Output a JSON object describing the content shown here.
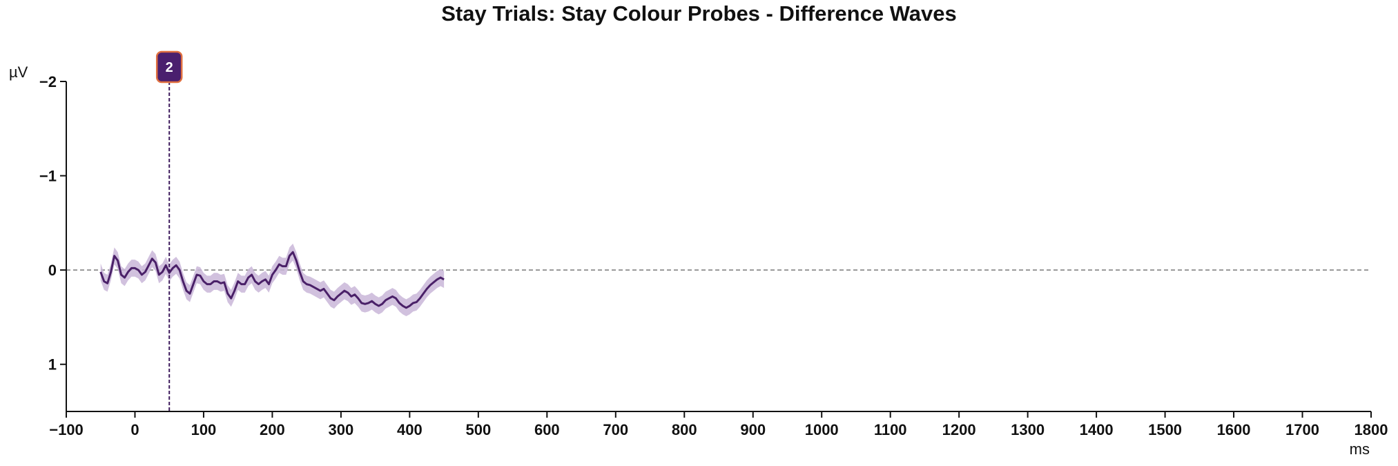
{
  "chart_data": {
    "type": "line",
    "title": "Stay Trials: Stay Colour Probes - Difference Waves",
    "xlabel": "ms",
    "ylabel": "µV",
    "xlim": [
      -100,
      1800
    ],
    "ylim": [
      1.5,
      -2
    ],
    "y_inverted": true,
    "x_ticks": [
      -100,
      0,
      100,
      200,
      300,
      400,
      500,
      600,
      700,
      800,
      900,
      1000,
      1100,
      1200,
      1300,
      1400,
      1500,
      1600,
      1700,
      1800
    ],
    "x_tick_labels": [
      "−100",
      "0",
      "100",
      "200",
      "300",
      "400",
      "500",
      "600",
      "700",
      "800",
      "900",
      "1000",
      "1100",
      "1200",
      "1300",
      "1400",
      "1500",
      "1600",
      "1700",
      "1800"
    ],
    "y_ticks": [
      -2,
      -1,
      0,
      1
    ],
    "y_tick_labels": [
      "−2",
      "−1",
      "0",
      "1"
    ],
    "zero_line": true,
    "series": [
      {
        "color": "#4a2068",
        "band_color": "#c9b6d8",
        "x": [
          -50,
          -45,
          -40,
          -35,
          -30,
          -25,
          -20,
          -15,
          -10,
          -5,
          0,
          5,
          10,
          15,
          20,
          25,
          30,
          35,
          40,
          45,
          50,
          55,
          60,
          65,
          70,
          75,
          80,
          85,
          90,
          95,
          100,
          105,
          110,
          115,
          120,
          125,
          130,
          135,
          140,
          145,
          150,
          155,
          160,
          165,
          170,
          175,
          180,
          185,
          190,
          195,
          200,
          205,
          210,
          215,
          220,
          225,
          230,
          235,
          240,
          245,
          250,
          255,
          260,
          265,
          270,
          275,
          280,
          285,
          290,
          295,
          300,
          305,
          310,
          315,
          320,
          325,
          330,
          335,
          340,
          345,
          350,
          355,
          360,
          365,
          370,
          375,
          380,
          385,
          390,
          395,
          400,
          405,
          410,
          415,
          420,
          425,
          430,
          435,
          440,
          445,
          450
        ],
        "y": [
          0.02,
          0.12,
          0.14,
          0.02,
          -0.15,
          -0.1,
          0.05,
          0.08,
          0.02,
          -0.02,
          -0.02,
          0.0,
          0.05,
          0.02,
          -0.05,
          -0.12,
          -0.08,
          0.05,
          0.02,
          -0.05,
          0.03,
          -0.02,
          -0.05,
          0.0,
          0.12,
          0.22,
          0.25,
          0.15,
          0.05,
          0.06,
          0.12,
          0.15,
          0.15,
          0.12,
          0.12,
          0.14,
          0.13,
          0.25,
          0.3,
          0.22,
          0.12,
          0.15,
          0.15,
          0.08,
          0.05,
          0.12,
          0.15,
          0.12,
          0.1,
          0.15,
          0.05,
          0.0,
          -0.06,
          -0.04,
          -0.04,
          -0.15,
          -0.19,
          -0.1,
          0.02,
          0.12,
          0.15,
          0.16,
          0.18,
          0.2,
          0.22,
          0.2,
          0.25,
          0.3,
          0.32,
          0.28,
          0.25,
          0.22,
          0.24,
          0.28,
          0.26,
          0.3,
          0.35,
          0.36,
          0.35,
          0.33,
          0.36,
          0.38,
          0.36,
          0.32,
          0.3,
          0.28,
          0.3,
          0.35,
          0.38,
          0.4,
          0.38,
          0.35,
          0.34,
          0.3,
          0.25,
          0.2,
          0.16,
          0.13,
          0.1,
          0.08,
          0.1
        ],
        "band_half_width": 0.09
      }
    ],
    "markers": [
      {
        "x": 50,
        "label": "2",
        "line_color": "#3d1a5c",
        "badge_fill": "#4a1f6e",
        "badge_border": "#e07040"
      }
    ]
  }
}
